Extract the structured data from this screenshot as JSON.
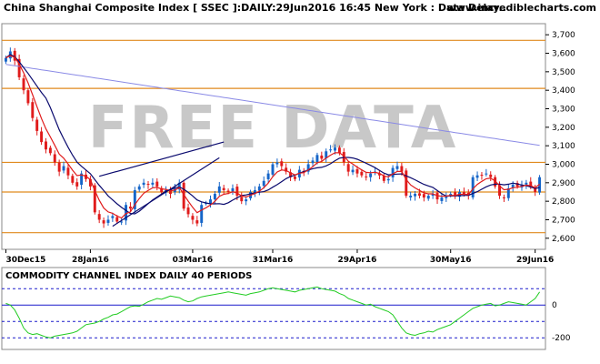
{
  "header": {
    "title": "China Shanghai Composite Index [ SSEC ]:DAILY:29Jun2016 16:45 New York : Data Delay..",
    "site": "www.incrediblecharts.com"
  },
  "watermark": "FREE DATA",
  "colors": {
    "up_candle": "#1565c8",
    "down_candle": "#e01b1b",
    "ma_short": "#e01b1b",
    "ma_mid": "#0a0a6e",
    "ma_long": "#8a8ae6",
    "sr_line": "#e08a1e",
    "trend_line": "#0a0a6e",
    "cci_line": "#22cc22",
    "cci_ref": "#1a1acc"
  },
  "chart_data": [
    {
      "type": "candlestick",
      "title": "China Shanghai Composite Index [ SSEC ]:DAILY:29Jun2016 16:45 New York : Data Delay..",
      "ylim": [
        2540,
        3760
      ],
      "y_ticks": [
        2600,
        2700,
        2800,
        2900,
        3000,
        3100,
        3200,
        3300,
        3400,
        3500,
        3600,
        3700
      ],
      "y_tick_labels": [
        "2,600",
        "2,700",
        "2,800",
        "2,900",
        "3,000",
        "3,100",
        "3,200",
        "3,300",
        "3,400",
        "3,500",
        "3,600",
        "3,700"
      ],
      "x_ticks": [
        "30Dec15",
        "28Jan16",
        "03Mar16",
        "31Mar16",
        "29Apr16",
        "30May16",
        "29Jun16"
      ],
      "x_tick_positions": [
        0,
        19,
        42,
        60,
        79,
        100,
        119
      ],
      "n_bars": 121,
      "close": [
        3575,
        3610,
        3560,
        3470,
        3400,
        3330,
        3250,
        3180,
        3120,
        3080,
        3060,
        3010,
        2960,
        2990,
        2940,
        2900,
        2880,
        2950,
        2920,
        2880,
        2740,
        2700,
        2680,
        2700,
        2720,
        2690,
        2690,
        2780,
        2760,
        2860,
        2880,
        2900,
        2890,
        2900,
        2880,
        2850,
        2860,
        2840,
        2870,
        2900,
        2760,
        2730,
        2700,
        2680,
        2780,
        2790,
        2810,
        2840,
        2880,
        2860,
        2850,
        2870,
        2830,
        2800,
        2810,
        2850,
        2860,
        2880,
        2910,
        2950,
        3000,
        3010,
        2990,
        2960,
        2930,
        2920,
        2970,
        2960,
        3000,
        3020,
        3050,
        3030,
        3070,
        3080,
        3090,
        3060,
        3010,
        2960,
        2970,
        2950,
        2940,
        2930,
        2950,
        2960,
        2940,
        2910,
        2920,
        2980,
        2990,
        2960,
        2830,
        2830,
        2840,
        2830,
        2820,
        2830,
        2840,
        2810,
        2820,
        2830,
        2840,
        2830,
        2850,
        2840,
        2830,
        2930,
        2940,
        2940,
        2950,
        2930,
        2880,
        2830,
        2820,
        2870,
        2890,
        2880,
        2890,
        2900,
        2880,
        2850,
        2930
      ],
      "moving_averages": [
        "short",
        "mid",
        "long"
      ],
      "horizontal_levels": [
        2630,
        2850,
        3010,
        3410,
        3670
      ],
      "trend_lines": [
        {
          "from": [
            21,
            2935
          ],
          "to": [
            49,
            3120
          ]
        },
        {
          "from": [
            24,
            2665
          ],
          "to": [
            48,
            3035
          ]
        }
      ]
    },
    {
      "type": "line",
      "title": "COMMODITY CHANNEL INDEX DAILY 40 PERIODS",
      "ylim": [
        -260,
        140
      ],
      "y_ticks": [
        0,
        -200
      ],
      "y_tick_labels": [
        "0",
        "-200"
      ],
      "reference_levels": [
        100,
        0,
        -100,
        -200
      ],
      "values": [
        10,
        0,
        -30,
        -80,
        -140,
        -170,
        -180,
        -175,
        -185,
        -195,
        -200,
        -190,
        -185,
        -180,
        -175,
        -170,
        -160,
        -140,
        -120,
        -115,
        -110,
        -100,
        -85,
        -75,
        -60,
        -55,
        -40,
        -25,
        -10,
        -5,
        -8,
        5,
        20,
        30,
        40,
        35,
        45,
        55,
        50,
        45,
        30,
        20,
        25,
        40,
        50,
        55,
        60,
        65,
        70,
        75,
        80,
        75,
        70,
        65,
        60,
        70,
        75,
        80,
        90,
        100,
        105,
        100,
        95,
        90,
        85,
        80,
        90,
        95,
        100,
        105,
        110,
        100,
        95,
        90,
        85,
        70,
        60,
        40,
        30,
        20,
        10,
        0,
        5,
        -10,
        -20,
        -30,
        -40,
        -60,
        -100,
        -140,
        -170,
        -180,
        -185,
        -175,
        -170,
        -160,
        -165,
        -150,
        -140,
        -130,
        -120,
        -100,
        -80,
        -60,
        -40,
        -20,
        -10,
        0,
        5,
        10,
        -5,
        0,
        10,
        20,
        15,
        10,
        5,
        0,
        20,
        40,
        80
      ]
    }
  ]
}
